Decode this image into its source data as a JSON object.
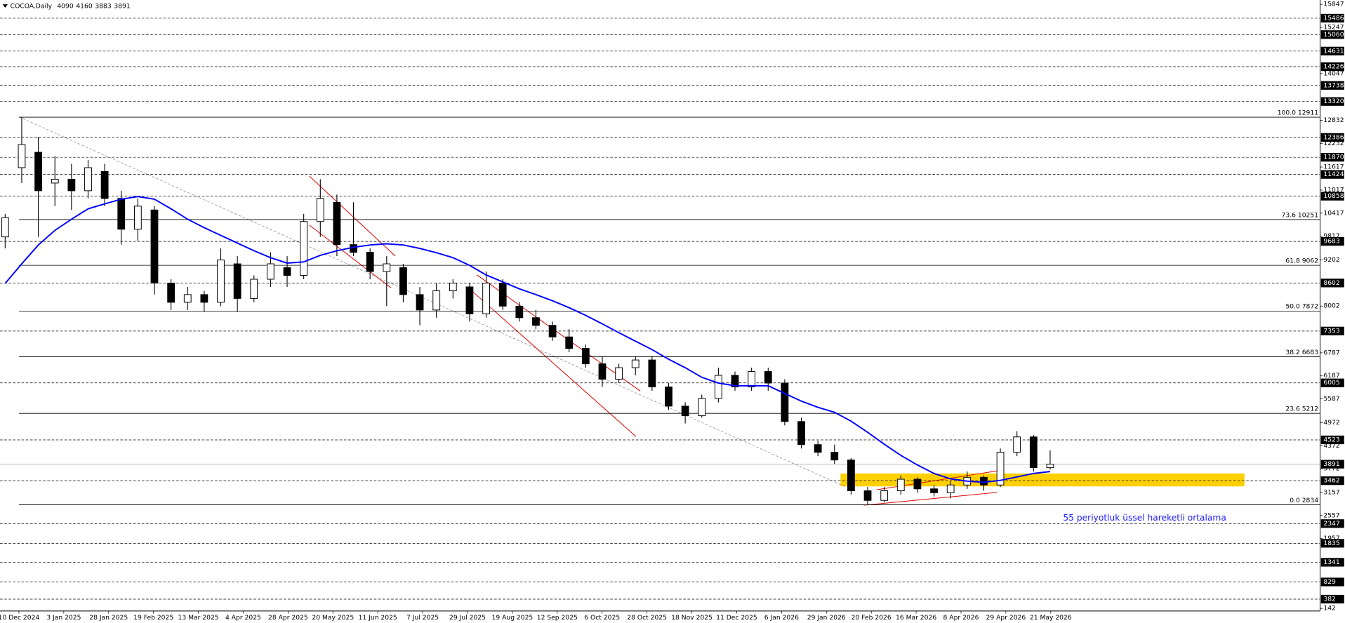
{
  "chart_data": {
    "type": "candlestick",
    "title": "COCOA.Daily",
    "header_values": [
      4090,
      4160,
      3883,
      3891
    ],
    "x_labels": [
      "10 Dec 2024",
      "3 Jan 2025",
      "28 Jan 2025",
      "19 Feb 2025",
      "13 Mar 2025",
      "4 Apr 2025",
      "28 Apr 2025",
      "20 May 2025",
      "11 Jun 2025",
      "7 Jul 2025",
      "29 Jul 2025",
      "19 Aug 2025",
      "12 Sep 2025",
      "6 Oct 2025",
      "28 Oct 2025",
      "18 Nov 2025",
      "11 Dec 2025",
      "6 Jan 2026",
      "29 Jan 2026",
      "20 Feb 2026",
      "16 Mar 2026",
      "8 Apr 2026",
      "29 Apr 2026",
      "21 May 2026"
    ],
    "candles": {
      "open": [
        9800,
        11600,
        12000,
        11200,
        11300,
        11000,
        11500,
        10800,
        10000,
        10500,
        8600,
        8100,
        8300,
        8100,
        9100,
        8200,
        8700,
        9000,
        8800,
        10200,
        10700,
        9600,
        9400,
        8900,
        9000,
        8300,
        7900,
        8400,
        8500,
        7800,
        8600,
        8000,
        7700,
        7500,
        7200,
        6900,
        6500,
        6100,
        6400,
        6600,
        5900,
        5400,
        5150,
        5600,
        6200,
        5900,
        6300,
        6000,
        5000,
        4400,
        4200,
        4000,
        3200,
        2950,
        3200,
        3500,
        3250,
        3150,
        3350,
        3550,
        3350,
        4200,
        4600,
        3800
      ],
      "high": [
        10400,
        12911,
        12400,
        11900,
        11700,
        11800,
        11700,
        11000,
        10800,
        10600,
        8700,
        8500,
        8400,
        9500,
        9300,
        8800,
        9400,
        9300,
        10400,
        11300,
        10900,
        10700,
        9500,
        9300,
        9100,
        8500,
        8600,
        8700,
        8600,
        8900,
        8700,
        8100,
        7900,
        7600,
        7400,
        7000,
        6700,
        6500,
        6700,
        6700,
        6000,
        5500,
        5700,
        6400,
        6300,
        6400,
        6400,
        6100,
        5100,
        4500,
        4400,
        4050,
        3300,
        3300,
        3600,
        3550,
        3350,
        3450,
        3700,
        3600,
        4300,
        4750,
        4650,
        4250
      ],
      "low": [
        9500,
        11200,
        9800,
        10600,
        10500,
        10800,
        10600,
        9600,
        9700,
        8300,
        7900,
        7900,
        7850,
        8000,
        7850,
        8100,
        8500,
        8500,
        8700,
        9800,
        9300,
        9300,
        8700,
        8000,
        8100,
        7500,
        7700,
        8200,
        7600,
        7700,
        7900,
        7600,
        7400,
        7100,
        6800,
        6400,
        5900,
        6000,
        6200,
        5800,
        5300,
        4950,
        5100,
        5500,
        5800,
        5800,
        5800,
        4900,
        4300,
        4100,
        3900,
        3100,
        2834,
        2900,
        3100,
        3150,
        3050,
        3000,
        3250,
        3200,
        3300,
        4100,
        3700,
        3750
      ],
      "close": [
        10300,
        12200,
        11000,
        11300,
        11000,
        11600,
        10800,
        10000,
        10600,
        8600,
        8100,
        8300,
        8100,
        9200,
        8200,
        8700,
        9100,
        8800,
        10200,
        10800,
        9600,
        9400,
        8900,
        9100,
        8300,
        7900,
        8400,
        8600,
        7800,
        8600,
        8000,
        7700,
        7500,
        7200,
        6900,
        6500,
        6100,
        6400,
        6600,
        5900,
        5400,
        5150,
        5600,
        6200,
        5900,
        6300,
        6000,
        5000,
        4400,
        4200,
        4000,
        3200,
        2950,
        3200,
        3500,
        3250,
        3150,
        3350,
        3550,
        3350,
        4200,
        4600,
        3800,
        3891
      ]
    },
    "series": [
      {
        "color": "#0000ff",
        "values": [
          8590,
          9100,
          9590,
          9970,
          10260,
          10530,
          10660,
          10780,
          10850,
          10780,
          10530,
          10260,
          10040,
          9840,
          9640,
          9440,
          9260,
          9120,
          9150,
          9320,
          9440,
          9530,
          9590,
          9620,
          9590,
          9500,
          9390,
          9260,
          9060,
          8810,
          8630,
          8450,
          8300,
          8140,
          7960,
          7760,
          7540,
          7310,
          7090,
          6870,
          6620,
          6400,
          6150,
          6000,
          5930,
          5930,
          5930,
          5730,
          5530,
          5370,
          5240,
          5010,
          4720,
          4410,
          4120,
          3870,
          3650,
          3510,
          3450,
          3420,
          3470,
          3560,
          3650,
          3700
        ]
      }
    ],
    "ylim": [
      75,
      15959
    ],
    "yticks": [
      15847,
      15247,
      14047,
      12832,
      12232,
      11617,
      11017,
      10417,
      9817,
      9202,
      8002,
      6787,
      6187,
      5587,
      4972,
      4372,
      3772,
      3157,
      2557,
      1957,
      142
    ],
    "grid_levels": [
      15486,
      15060,
      14631,
      14226,
      13738,
      13320,
      12386,
      11870,
      11424,
      10858,
      9683,
      8602,
      7353,
      6005,
      4523,
      3462,
      2347,
      1835,
      1341,
      829,
      382
    ],
    "current_price": 3891,
    "fib_levels": [
      {
        "value": 12911,
        "label": "100.0 12911"
      },
      {
        "value": 10251,
        "label": "73.6 10251"
      },
      {
        "value": 9062,
        "label": "61.8 9062"
      },
      {
        "value": 7872,
        "label": "50.0 7872"
      },
      {
        "value": 6683,
        "label": "38.2 6683"
      },
      {
        "value": 5212,
        "label": "23.6 5212"
      },
      {
        "value": 2834,
        "label": "0.0 2834"
      }
    ],
    "annotation": "55 periyotluk üssel hareketli ortalama",
    "grid": true
  }
}
